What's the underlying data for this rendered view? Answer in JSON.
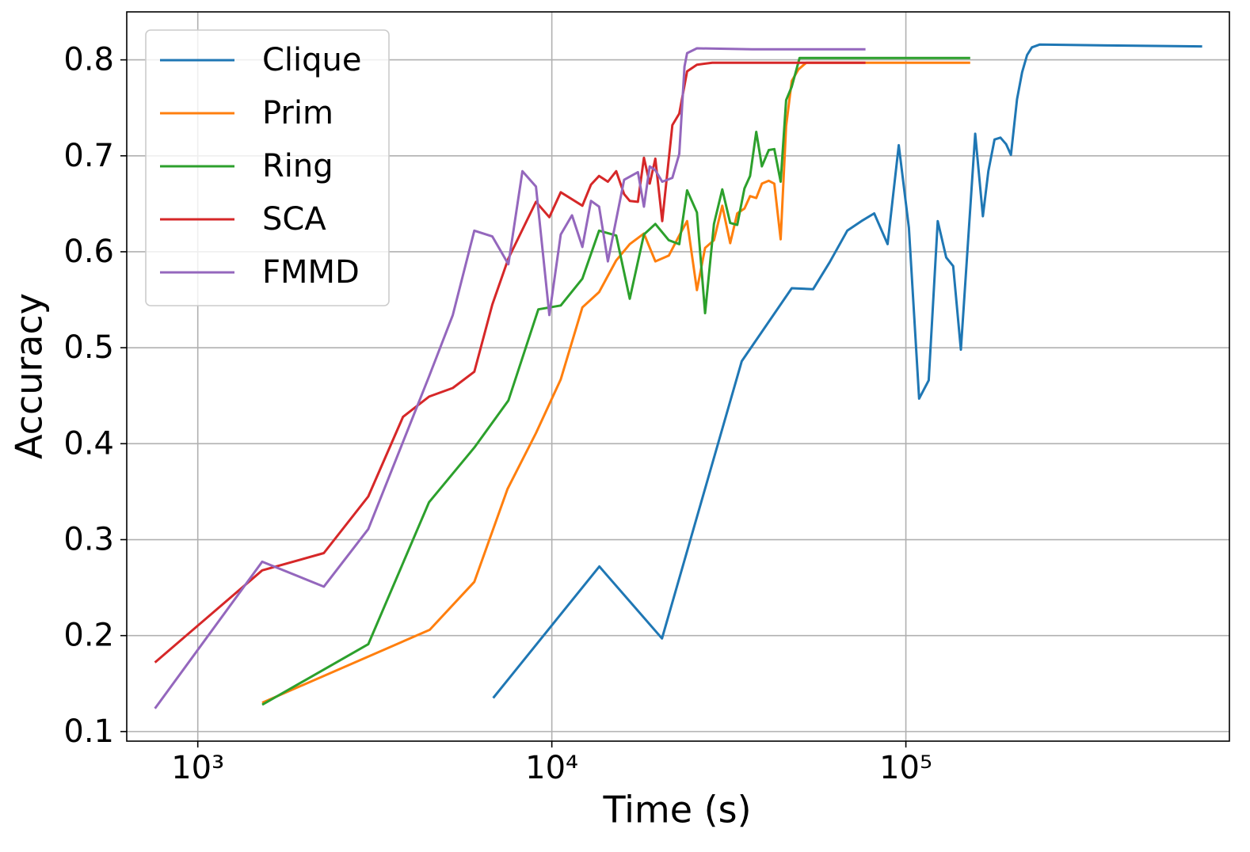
{
  "chart_data": {
    "type": "line",
    "xlabel": "Time (s)",
    "ylabel": "Accuracy",
    "xscale": "log",
    "grid": true,
    "legend": "upper left",
    "xlim": [
      630,
      820000
    ],
    "ylim": [
      0.09,
      0.85
    ],
    "xticks": [
      {
        "value": 1000,
        "label": "10³"
      },
      {
        "value": 10000,
        "label": "10⁴"
      },
      {
        "value": 100000,
        "label": "10⁵"
      }
    ],
    "yticks": [
      0.1,
      0.2,
      0.3,
      0.4,
      0.5,
      0.6,
      0.7,
      0.8
    ],
    "series": [
      {
        "name": "Clique",
        "color": "#1f77b4",
        "x": [
          6830,
          13620,
          20470,
          34400,
          47600,
          54700,
          60900,
          68300,
          74900,
          81400,
          88800,
          95500,
          102000,
          109000,
          116000,
          123000,
          130000,
          136000,
          143000,
          157000,
          165000,
          171000,
          178000,
          185000,
          192000,
          198000,
          206000,
          213000,
          220000,
          227000,
          239000,
          374000,
          687000
        ],
        "values": [
          0.135,
          0.272,
          0.197,
          0.486,
          0.562,
          0.561,
          0.589,
          0.622,
          0.632,
          0.64,
          0.608,
          0.711,
          0.625,
          0.447,
          0.466,
          0.632,
          0.594,
          0.585,
          0.498,
          0.723,
          0.637,
          0.684,
          0.717,
          0.719,
          0.712,
          0.701,
          0.759,
          0.787,
          0.805,
          0.813,
          0.816,
          0.815,
          0.814
        ]
      },
      {
        "name": "Prim",
        "color": "#ff7f0e",
        "x": [
          1520,
          4520,
          6040,
          7500,
          9020,
          10600,
          12200,
          13600,
          15200,
          16600,
          18200,
          19600,
          21400,
          22900,
          24100,
          25700,
          27100,
          28700,
          30300,
          31900,
          33400,
          35000,
          36300,
          37800,
          39200,
          41000,
          42500,
          44300,
          45900,
          47600,
          49700,
          52300,
          79800,
          152000
        ],
        "values": [
          0.13,
          0.206,
          0.256,
          0.353,
          0.411,
          0.467,
          0.542,
          0.558,
          0.591,
          0.608,
          0.619,
          0.59,
          0.596,
          0.617,
          0.632,
          0.56,
          0.604,
          0.612,
          0.648,
          0.609,
          0.64,
          0.645,
          0.658,
          0.656,
          0.671,
          0.674,
          0.671,
          0.613,
          0.731,
          0.778,
          0.79,
          0.797,
          0.797,
          0.797
        ]
      },
      {
        "name": "Ring",
        "color": "#2ca02c",
        "x": [
          1520,
          3030,
          4500,
          6040,
          7540,
          9160,
          10600,
          12200,
          13600,
          15200,
          16600,
          18200,
          19600,
          21400,
          22900,
          24100,
          25700,
          27100,
          28700,
          30300,
          31900,
          33400,
          35000,
          36300,
          37800,
          39200,
          41000,
          42500,
          44300,
          45900,
          47600,
          50100,
          79800,
          152000
        ],
        "values": [
          0.128,
          0.191,
          0.339,
          0.396,
          0.445,
          0.54,
          0.544,
          0.572,
          0.622,
          0.617,
          0.551,
          0.618,
          0.629,
          0.612,
          0.608,
          0.664,
          0.641,
          0.536,
          0.629,
          0.665,
          0.63,
          0.628,
          0.666,
          0.679,
          0.725,
          0.689,
          0.706,
          0.707,
          0.673,
          0.758,
          0.772,
          0.802,
          0.802,
          0.802
        ]
      },
      {
        "name": "SCA",
        "color": "#d62728",
        "x": [
          757,
          1520,
          2270,
          3030,
          3800,
          4500,
          5250,
          6040,
          6790,
          7540,
          9020,
          9840,
          10600,
          12200,
          12900,
          13600,
          14400,
          15200,
          16000,
          16600,
          17500,
          18200,
          18900,
          19600,
          20500,
          21900,
          22900,
          24100,
          25700,
          28400,
          47600,
          76900
        ],
        "values": [
          0.172,
          0.268,
          0.286,
          0.345,
          0.428,
          0.449,
          0.458,
          0.475,
          0.545,
          0.593,
          0.652,
          0.636,
          0.662,
          0.648,
          0.67,
          0.679,
          0.673,
          0.684,
          0.66,
          0.653,
          0.652,
          0.698,
          0.671,
          0.697,
          0.632,
          0.732,
          0.744,
          0.788,
          0.795,
          0.797,
          0.797,
          0.797
        ]
      },
      {
        "name": "FMMD",
        "color": "#9467bd",
        "x": [
          757,
          1520,
          2270,
          3030,
          4500,
          5250,
          6040,
          6790,
          7540,
          8260,
          9020,
          9840,
          10600,
          11400,
          12200,
          12900,
          13600,
          14400,
          16000,
          17500,
          18200,
          18900,
          19600,
          20500,
          21900,
          22900,
          23700,
          24100,
          25700,
          36800,
          76900
        ],
        "values": [
          0.124,
          0.277,
          0.251,
          0.311,
          0.47,
          0.534,
          0.622,
          0.616,
          0.587,
          0.684,
          0.668,
          0.534,
          0.618,
          0.638,
          0.605,
          0.653,
          0.647,
          0.59,
          0.675,
          0.683,
          0.647,
          0.689,
          0.685,
          0.673,
          0.677,
          0.702,
          0.793,
          0.807,
          0.812,
          0.811,
          0.811
        ]
      }
    ]
  }
}
